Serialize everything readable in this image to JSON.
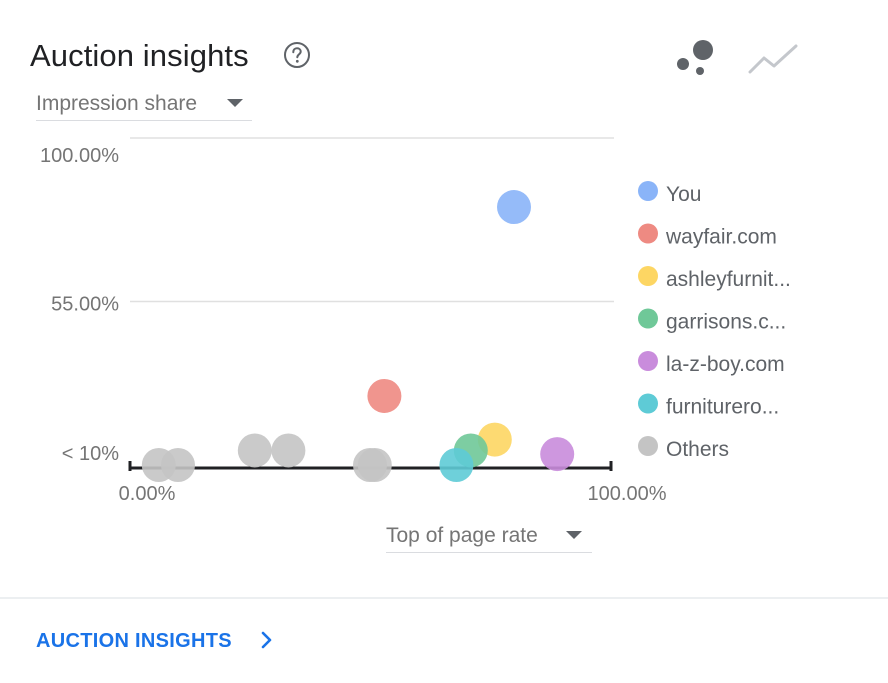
{
  "header": {
    "title": "Auction insights",
    "help_icon": "help-circle-icon",
    "view_toggles": [
      {
        "icon": "scatter-chart-icon",
        "selected": true
      },
      {
        "icon": "line-chart-icon",
        "selected": false
      }
    ]
  },
  "controls": {
    "y_metric": "Impression share",
    "x_metric": "Top of page rate"
  },
  "footer": {
    "link_label": "AUCTION INSIGHTS",
    "link_icon": "chevron-right-icon"
  },
  "colors": {
    "text_primary": "#202124",
    "text_secondary": "#757575",
    "link": "#1a73e8",
    "gridline": "#e0e0e0",
    "axis": "#202124"
  },
  "chart_data": {
    "type": "scatter",
    "title": "",
    "xlabel": "Top of page rate",
    "ylabel": "Impression share",
    "xlim": [
      0,
      100
    ],
    "ylim": [
      10,
      100
    ],
    "x_ticks": [
      {
        "value": 0,
        "label": "0.00%"
      },
      {
        "value": 100,
        "label": "100.00%"
      }
    ],
    "y_ticks": [
      {
        "value": 10,
        "label": "< 10%"
      },
      {
        "value": 55,
        "label": "55.00%"
      },
      {
        "value": 100,
        "label": "100.00%"
      }
    ],
    "grid": true,
    "legend_position": "right",
    "series": [
      {
        "name": "You",
        "color": "#8ab4f8",
        "points": [
          {
            "x": 80,
            "y": 81
          }
        ]
      },
      {
        "name": "wayfair.com",
        "color": "#ee8a82",
        "points": [
          {
            "x": 53,
            "y": 29
          }
        ]
      },
      {
        "name": "ashleyfurnit...",
        "color": "#fdd663",
        "points": [
          {
            "x": 76,
            "y": 17
          }
        ]
      },
      {
        "name": "garrisons.c...",
        "color": "#6fc898",
        "points": [
          {
            "x": 71,
            "y": 14
          }
        ]
      },
      {
        "name": "la-z-boy.com",
        "color": "#c98cdc",
        "points": [
          {
            "x": 89,
            "y": 13
          }
        ]
      },
      {
        "name": "furniturero...",
        "color": "#5ecbd6",
        "points": [
          {
            "x": 68,
            "y": 10
          }
        ]
      },
      {
        "name": "Others",
        "color": "#c4c4c4",
        "points": [
          {
            "x": 6,
            "y": 10
          },
          {
            "x": 10,
            "y": 10
          },
          {
            "x": 26,
            "y": 14
          },
          {
            "x": 33,
            "y": 14
          },
          {
            "x": 50,
            "y": 10
          },
          {
            "x": 51,
            "y": 10
          }
        ]
      }
    ]
  }
}
